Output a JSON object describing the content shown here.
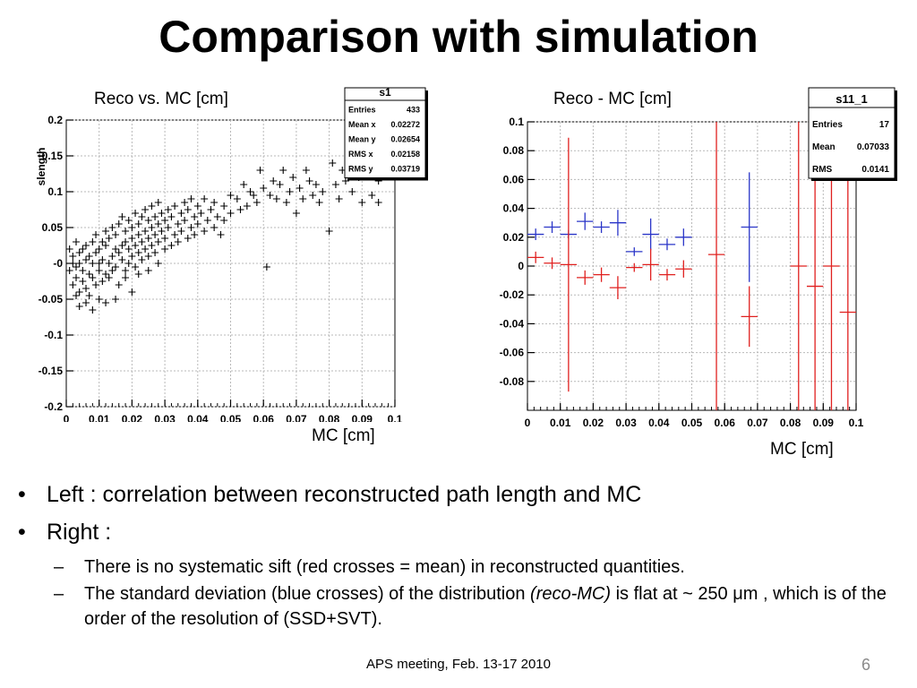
{
  "slide": {
    "title": "Comparison with simulation",
    "page_number": "6",
    "footer": "APS meeting, Feb. 13-17 2010"
  },
  "bullets": {
    "item1": "Left : correlation between reconstructed path length and MC",
    "item2": "Right :",
    "sub1": "There is no systematic sift (red crosses = mean) in reconstructed quantities.",
    "sub2_pre": "The standard deviation (blue crosses) of the distribution ",
    "sub2_em": "(reco-MC)",
    "sub2_mid": " is flat at ~ 250 ",
    "sub2_unit": "μm",
    "sub2_post": " , which is of the order of the resolution of (SSD+SVT)."
  },
  "chart_data": [
    {
      "type": "scatter",
      "caption_top": "Reco  vs. MC [cm]",
      "caption_bottom": "MC [cm]",
      "ylabel": "slength",
      "xlim": [
        0,
        0.1
      ],
      "ylim": [
        -0.2,
        0.2
      ],
      "x_ticks": [
        "0",
        "0.01",
        "0.02",
        "0.03",
        "0.04",
        "0.05",
        "0.06",
        "0.07",
        "0.08",
        "0.09",
        "0.1"
      ],
      "y_ticks": [
        "-0.2",
        "-0.15",
        "-0.1",
        "-0.05",
        "-0",
        "0.05",
        "0.1",
        "0.15",
        "0.2"
      ],
      "grid": true,
      "marker": "+",
      "color": "#000000",
      "stats_box": {
        "name": "s1",
        "rows": [
          {
            "label": "Entries",
            "value": "433"
          },
          {
            "label": "Mean x",
            "value": "0.02272"
          },
          {
            "label": "Mean y",
            "value": "0.02654"
          },
          {
            "label": "RMS x",
            "value": "0.02158"
          },
          {
            "label": "RMS y",
            "value": "0.03719"
          }
        ]
      },
      "points": [
        [
          0.001,
          0.02
        ],
        [
          0.001,
          -0.01
        ],
        [
          0.002,
          0.0
        ],
        [
          0.002,
          -0.03
        ],
        [
          0.002,
          0.01
        ],
        [
          0.003,
          -0.02
        ],
        [
          0.003,
          0.03
        ],
        [
          0.003,
          -0.005
        ],
        [
          0.004,
          0.0
        ],
        [
          0.004,
          -0.04
        ],
        [
          0.004,
          0.015
        ],
        [
          0.005,
          -0.01
        ],
        [
          0.005,
          0.02
        ],
        [
          0.005,
          -0.025
        ],
        [
          0.006,
          0.005
        ],
        [
          0.006,
          -0.035
        ],
        [
          0.006,
          0.025
        ],
        [
          0.007,
          -0.015
        ],
        [
          0.007,
          0.01
        ],
        [
          0.007,
          -0.045
        ],
        [
          0.008,
          0.0
        ],
        [
          0.008,
          0.03
        ],
        [
          0.008,
          -0.02
        ],
        [
          0.009,
          0.015
        ],
        [
          0.009,
          -0.03
        ],
        [
          0.009,
          0.04
        ],
        [
          0.01,
          -0.01
        ],
        [
          0.01,
          0.02
        ],
        [
          0.01,
          0.0
        ],
        [
          0.011,
          -0.025
        ],
        [
          0.011,
          0.03
        ],
        [
          0.011,
          0.005
        ],
        [
          0.012,
          -0.015
        ],
        [
          0.012,
          0.025
        ],
        [
          0.012,
          0.045
        ],
        [
          0.013,
          0.0
        ],
        [
          0.013,
          -0.02
        ],
        [
          0.013,
          0.035
        ],
        [
          0.014,
          0.01
        ],
        [
          0.014,
          -0.01
        ],
        [
          0.014,
          0.05
        ],
        [
          0.015,
          0.02
        ],
        [
          0.015,
          -0.005
        ],
        [
          0.015,
          0.04
        ],
        [
          0.016,
          0.015
        ],
        [
          0.016,
          -0.03
        ],
        [
          0.016,
          0.055
        ],
        [
          0.017,
          0.025
        ],
        [
          0.017,
          0.005
        ],
        [
          0.017,
          0.065
        ],
        [
          0.018,
          0.03
        ],
        [
          0.018,
          -0.01
        ],
        [
          0.018,
          0.045
        ],
        [
          0.019,
          0.02
        ],
        [
          0.019,
          0.06
        ],
        [
          0.019,
          0.0
        ],
        [
          0.02,
          0.035
        ],
        [
          0.02,
          0.05
        ],
        [
          0.02,
          0.01
        ],
        [
          0.021,
          0.025
        ],
        [
          0.021,
          0.07
        ],
        [
          0.021,
          -0.005
        ],
        [
          0.022,
          0.04
        ],
        [
          0.022,
          0.015
        ],
        [
          0.022,
          0.055
        ],
        [
          0.023,
          0.03
        ],
        [
          0.023,
          0.065
        ],
        [
          0.023,
          0.005
        ],
        [
          0.024,
          0.045
        ],
        [
          0.024,
          0.02
        ],
        [
          0.024,
          0.075
        ],
        [
          0.025,
          0.035
        ],
        [
          0.025,
          0.06
        ],
        [
          0.025,
          0.01
        ],
        [
          0.026,
          0.05
        ],
        [
          0.026,
          0.025
        ],
        [
          0.026,
          0.08
        ],
        [
          0.027,
          0.04
        ],
        [
          0.027,
          0.065
        ],
        [
          0.027,
          0.015
        ],
        [
          0.028,
          0.055
        ],
        [
          0.028,
          0.03
        ],
        [
          0.028,
          0.085
        ],
        [
          0.029,
          0.045
        ],
        [
          0.029,
          0.07
        ],
        [
          0.03,
          0.02
        ],
        [
          0.03,
          0.06
        ],
        [
          0.03,
          0.035
        ],
        [
          0.031,
          0.075
        ],
        [
          0.031,
          0.05
        ],
        [
          0.032,
          0.025
        ],
        [
          0.032,
          0.065
        ],
        [
          0.033,
          0.04
        ],
        [
          0.033,
          0.08
        ],
        [
          0.034,
          0.055
        ],
        [
          0.034,
          0.03
        ],
        [
          0.035,
          0.07
        ],
        [
          0.035,
          0.045
        ],
        [
          0.036,
          0.085
        ],
        [
          0.036,
          0.06
        ],
        [
          0.037,
          0.035
        ],
        [
          0.037,
          0.075
        ],
        [
          0.038,
          0.05
        ],
        [
          0.038,
          0.09
        ],
        [
          0.039,
          0.065
        ],
        [
          0.039,
          0.04
        ],
        [
          0.04,
          0.08
        ],
        [
          0.04,
          0.055
        ],
        [
          0.041,
          0.07
        ],
        [
          0.042,
          0.045
        ],
        [
          0.042,
          0.09
        ],
        [
          0.043,
          0.06
        ],
        [
          0.044,
          0.075
        ],
        [
          0.045,
          0.05
        ],
        [
          0.045,
          0.085
        ],
        [
          0.046,
          0.065
        ],
        [
          0.047,
          0.04
        ],
        [
          0.048,
          0.08
        ],
        [
          0.048,
          0.06
        ],
        [
          0.05,
          0.07
        ],
        [
          0.05,
          0.095
        ],
        [
          0.052,
          0.09
        ],
        [
          0.053,
          0.075
        ],
        [
          0.054,
          0.11
        ],
        [
          0.055,
          0.08
        ],
        [
          0.056,
          0.1
        ],
        [
          0.057,
          0.095
        ],
        [
          0.058,
          0.085
        ],
        [
          0.059,
          0.13
        ],
        [
          0.06,
          0.105
        ],
        [
          0.061,
          -0.005
        ],
        [
          0.062,
          0.095
        ],
        [
          0.063,
          0.115
        ],
        [
          0.064,
          0.09
        ],
        [
          0.065,
          0.11
        ],
        [
          0.066,
          0.13
        ],
        [
          0.067,
          0.085
        ],
        [
          0.068,
          0.1
        ],
        [
          0.069,
          0.12
        ],
        [
          0.07,
          0.07
        ],
        [
          0.071,
          0.105
        ],
        [
          0.072,
          0.09
        ],
        [
          0.073,
          0.13
        ],
        [
          0.074,
          0.115
        ],
        [
          0.075,
          0.095
        ],
        [
          0.076,
          0.11
        ],
        [
          0.077,
          0.085
        ],
        [
          0.078,
          0.1
        ],
        [
          0.08,
          0.045
        ],
        [
          0.081,
          0.14
        ],
        [
          0.082,
          0.11
        ],
        [
          0.083,
          0.09
        ],
        [
          0.084,
          0.13
        ],
        [
          0.085,
          0.115
        ],
        [
          0.087,
          0.1
        ],
        [
          0.088,
          0.135
        ],
        [
          0.089,
          0.12
        ],
        [
          0.09,
          0.085
        ],
        [
          0.091,
          0.125
        ],
        [
          0.092,
          0.14
        ],
        [
          0.093,
          0.095
        ],
        [
          0.094,
          0.13
        ],
        [
          0.095,
          0.115
        ],
        [
          0.095,
          0.085
        ],
        [
          0.02,
          -0.04
        ],
        [
          0.015,
          -0.05
        ],
        [
          0.01,
          -0.05
        ],
        [
          0.008,
          -0.065
        ],
        [
          0.012,
          -0.055
        ],
        [
          0.004,
          -0.06
        ],
        [
          0.003,
          -0.045
        ],
        [
          0.006,
          -0.055
        ],
        [
          0.018,
          -0.02
        ],
        [
          0.022,
          -0.015
        ],
        [
          0.025,
          -0.01
        ],
        [
          0.028,
          0.0
        ]
      ]
    },
    {
      "type": "scatter",
      "caption_top": "Reco - MC [cm]",
      "caption_bottom": "MC [cm]",
      "xlim": [
        0,
        0.1
      ],
      "ylim": [
        -0.1,
        0.1
      ],
      "x_ticks": [
        "0",
        "0.01",
        "0.02",
        "0.03",
        "0.04",
        "0.05",
        "0.06",
        "0.07",
        "0.08",
        "0.09",
        "0.1"
      ],
      "y_ticks": [
        "-0.08",
        "-0.06",
        "-0.04",
        "-0.02",
        "0",
        "0.02",
        "0.04",
        "0.06",
        "0.08",
        "0.1"
      ],
      "grid": true,
      "stats_box": {
        "name": "s11_1",
        "rows": [
          {
            "label": "Entries",
            "value": "17"
          },
          {
            "label": "Mean",
            "value": "0.07033"
          },
          {
            "label": "RMS",
            "value": "0.0141"
          }
        ]
      },
      "series": [
        {
          "color": "#2a35c8",
          "points": [
            {
              "x": 0.0025,
              "y": 0.022,
              "xerr": 0.0025,
              "yerr": 0.004
            },
            {
              "x": 0.0075,
              "y": 0.027,
              "xerr": 0.0025,
              "yerr": 0.004
            },
            {
              "x": 0.0125,
              "y": 0.022,
              "xerr": 0.0025,
              "yerr": 0.003
            },
            {
              "x": 0.0175,
              "y": 0.031,
              "xerr": 0.0025,
              "yerr": 0.006
            },
            {
              "x": 0.0225,
              "y": 0.027,
              "xerr": 0.0025,
              "yerr": 0.004
            },
            {
              "x": 0.0275,
              "y": 0.03,
              "xerr": 0.0025,
              "yerr": 0.009
            },
            {
              "x": 0.0325,
              "y": 0.01,
              "xerr": 0.0025,
              "yerr": 0.003
            },
            {
              "x": 0.0375,
              "y": 0.022,
              "xerr": 0.0025,
              "yerr": 0.011
            },
            {
              "x": 0.0425,
              "y": 0.015,
              "xerr": 0.0025,
              "yerr": 0.004
            },
            {
              "x": 0.0475,
              "y": 0.02,
              "xerr": 0.0025,
              "yerr": 0.006
            },
            {
              "x": 0.0675,
              "y": 0.027,
              "xerr": 0.0025,
              "yerr": 0.038
            }
          ]
        },
        {
          "color": "#e0201f",
          "points": [
            {
              "x": 0.0025,
              "y": 0.006,
              "xerr": 0.0025,
              "yerr": 0.004
            },
            {
              "x": 0.0075,
              "y": 0.002,
              "xerr": 0.0025,
              "yerr": 0.004
            },
            {
              "x": 0.0125,
              "y": 0.001,
              "xerr": 0.0025,
              "yerr": 0.088
            },
            {
              "x": 0.0175,
              "y": -0.008,
              "xerr": 0.0025,
              "yerr": 0.005
            },
            {
              "x": 0.0225,
              "y": -0.006,
              "xerr": 0.0025,
              "yerr": 0.005
            },
            {
              "x": 0.0275,
              "y": -0.015,
              "xerr": 0.0025,
              "yerr": 0.008
            },
            {
              "x": 0.0325,
              "y": -0.001,
              "xerr": 0.0025,
              "yerr": 0.003
            },
            {
              "x": 0.0375,
              "y": 0.001,
              "xerr": 0.0025,
              "yerr": 0.011
            },
            {
              "x": 0.0425,
              "y": -0.006,
              "xerr": 0.0025,
              "yerr": 0.004
            },
            {
              "x": 0.0475,
              "y": -0.002,
              "xerr": 0.0025,
              "yerr": 0.006
            },
            {
              "x": 0.0575,
              "y": 0.008,
              "xerr": 0.0025,
              "yerr": 0.12
            },
            {
              "x": 0.0675,
              "y": -0.035,
              "xerr": 0.0025,
              "yerr": 0.021
            },
            {
              "x": 0.0825,
              "y": 0.0,
              "xerr": 0.0025,
              "yerr": 0.12
            },
            {
              "x": 0.0875,
              "y": -0.014,
              "xerr": 0.0025,
              "yerr": 0.12
            },
            {
              "x": 0.0925,
              "y": 0.0,
              "xerr": 0.0025,
              "yerr": 0.12
            },
            {
              "x": 0.0975,
              "y": -0.032,
              "xerr": 0.0025,
              "yerr": 0.12
            }
          ]
        }
      ]
    }
  ]
}
